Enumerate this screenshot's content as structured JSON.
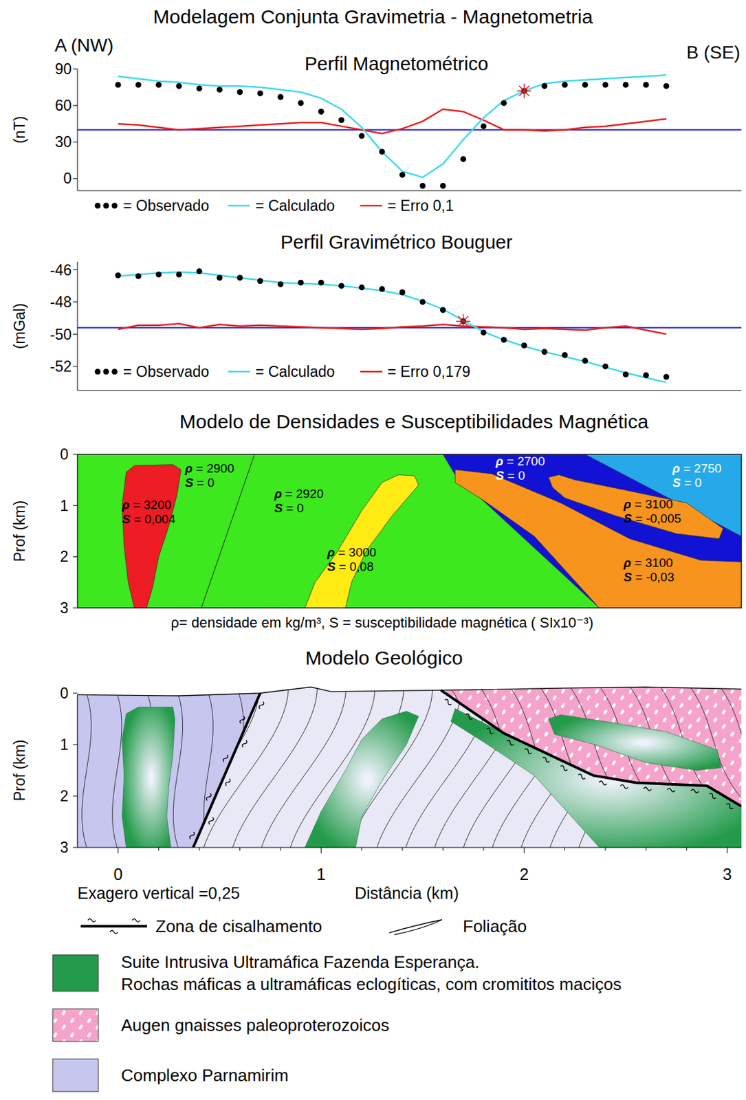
{
  "title": "Modelagem Conjunta Gravimetria - Magnetometria",
  "profile_ends": {
    "left": "A (NW)",
    "right": "B (SE)"
  },
  "chart_data": [
    {
      "type": "line",
      "title": "Perfil Magnetométrico",
      "y_label": "(nT)",
      "tick_labels": "y",
      "x": [
        0,
        0.1,
        0.2,
        0.3,
        0.4,
        0.5,
        0.6,
        0.7,
        0.8,
        0.9,
        1.0,
        1.1,
        1.2,
        1.3,
        1.4,
        1.5,
        1.6,
        1.7,
        1.8,
        1.9,
        2.0,
        2.1,
        2.2,
        2.3,
        2.4,
        2.5,
        2.6,
        2.7
      ],
      "xlim": [
        -0.2,
        3.07
      ],
      "ylim": [
        -10,
        90
      ],
      "yticks": [
        0,
        30,
        60,
        90
      ],
      "series": [
        {
          "name": "= Observado",
          "color": "#000000",
          "marker": "circle",
          "line_style": "none",
          "values": [
            77,
            77,
            77,
            76,
            74,
            73,
            71,
            70,
            67,
            62,
            55,
            48,
            35,
            22,
            3,
            -6,
            -6,
            16,
            43,
            62,
            72,
            76,
            77,
            77,
            77,
            77,
            77,
            76
          ]
        },
        {
          "name": "= Calculado",
          "color": "#3fd8f0",
          "marker": "none",
          "line_style": "solid",
          "values": [
            84,
            82,
            80,
            79,
            77,
            76,
            76,
            75,
            73,
            71,
            66,
            57,
            42,
            22,
            6,
            1,
            12,
            32,
            50,
            64,
            72,
            78,
            80,
            81,
            82,
            83,
            84,
            85
          ]
        },
        {
          "name": "= Erro 0,1",
          "color": "#e8201c",
          "marker": "none",
          "line_style": "solid",
          "values": [
            45,
            44,
            42,
            40,
            41,
            42,
            43,
            44,
            45,
            46,
            46,
            43,
            40,
            37,
            41,
            47,
            57,
            55,
            48,
            40,
            40,
            39,
            40,
            42,
            43,
            45,
            47,
            49
          ]
        }
      ],
      "reference_line": {
        "y": 40,
        "color": "#1c1cd4"
      },
      "highlight": {
        "x": 2.0,
        "y": 72,
        "color": "#d62020",
        "marker": "asterisk"
      }
    },
    {
      "type": "line",
      "title": "Perfil Gravimétrico Bouguer",
      "y_label": "(mGal)",
      "tick_labels": "y",
      "x": [
        0,
        0.1,
        0.2,
        0.3,
        0.4,
        0.5,
        0.6,
        0.7,
        0.8,
        0.9,
        1.0,
        1.1,
        1.2,
        1.3,
        1.4,
        1.5,
        1.6,
        1.7,
        1.8,
        1.9,
        2.0,
        2.1,
        2.2,
        2.3,
        2.4,
        2.5,
        2.6,
        2.7
      ],
      "xlim": [
        -0.2,
        3.07
      ],
      "ylim": [
        -53.5,
        -45.5
      ],
      "yticks": [
        -52,
        -50,
        -48,
        -46
      ],
      "series": [
        {
          "name": "= Observado",
          "color": "#000000",
          "marker": "circle",
          "line_style": "none",
          "values": [
            -46.35,
            -46.4,
            -46.3,
            -46.3,
            -46.1,
            -46.5,
            -46.5,
            -46.7,
            -46.9,
            -46.8,
            -46.8,
            -47.0,
            -47.1,
            -47.2,
            -47.4,
            -48.0,
            -48.5,
            -49.2,
            -49.9,
            -50.35,
            -50.7,
            -51.1,
            -51.3,
            -51.65,
            -52.0,
            -52.5,
            -52.55,
            -52.65
          ]
        },
        {
          "name": "= Calculado",
          "color": "#3fd8f0",
          "marker": "none",
          "line_style": "solid",
          "values": [
            -46.4,
            -46.3,
            -46.2,
            -46.15,
            -46.2,
            -46.35,
            -46.5,
            -46.65,
            -46.8,
            -46.85,
            -46.9,
            -47.0,
            -47.15,
            -47.3,
            -47.55,
            -47.95,
            -48.45,
            -49.15,
            -49.85,
            -50.35,
            -50.75,
            -51.1,
            -51.4,
            -51.7,
            -52.05,
            -52.4,
            -52.7,
            -53.0
          ]
        },
        {
          "name": "= Erro 0,179",
          "color": "#e8201c",
          "marker": "none",
          "line_style": "solid",
          "values": [
            -49.7,
            -49.45,
            -49.45,
            -49.35,
            -49.6,
            -49.4,
            -49.5,
            -49.45,
            -49.5,
            -49.55,
            -49.6,
            -49.65,
            -49.7,
            -49.65,
            -49.55,
            -49.5,
            -49.4,
            -49.5,
            -49.55,
            -49.6,
            -49.7,
            -49.65,
            -49.7,
            -49.75,
            -49.6,
            -49.5,
            -49.75,
            -50.0
          ]
        }
      ],
      "reference_line": {
        "y": -49.6,
        "color": "#1c1cd4"
      },
      "highlight": {
        "x": 1.7,
        "y": -49.2,
        "color": "#d62020",
        "marker": "asterisk"
      }
    }
  ],
  "density_model": {
    "title": "Modelo de Densidades e Susceptibilidades Magnética",
    "caption": "ρ= densidade em kg/m³, S = susceptibilidade magnética ( SIx10⁻³)",
    "y_label": "Prof (km)",
    "xlim": [
      -0.2,
      3.07
    ],
    "ylim": [
      0,
      3
    ],
    "yticks": [
      0,
      1,
      2,
      3
    ],
    "tick_labels": "y",
    "bodies": [
      {
        "color": "#3de81e",
        "polygon": [
          [
            -0.2,
            0
          ],
          [
            3.07,
            0
          ],
          [
            3.07,
            3
          ],
          [
            -0.2,
            3
          ]
        ]
      },
      {
        "color": "#ee1c24",
        "polygon": [
          [
            0.04,
            0.35
          ],
          [
            0.08,
            0.22
          ],
          [
            0.27,
            0.2
          ],
          [
            0.31,
            0.3
          ],
          [
            0.29,
            0.8
          ],
          [
            0.25,
            1.4
          ],
          [
            0.2,
            2.0
          ],
          [
            0.17,
            2.6
          ],
          [
            0.14,
            3.0
          ],
          [
            0.08,
            3.0
          ],
          [
            0.05,
            2.5
          ],
          [
            0.03,
            1.8
          ],
          [
            0.02,
            1.0
          ]
        ]
      },
      {
        "color": "#ffeb14",
        "polygon": [
          [
            1.3,
            0.55
          ],
          [
            1.38,
            0.4
          ],
          [
            1.46,
            0.42
          ],
          [
            1.48,
            0.6
          ],
          [
            1.35,
            1.2
          ],
          [
            1.22,
            1.9
          ],
          [
            1.15,
            2.5
          ],
          [
            1.12,
            3.0
          ],
          [
            0.92,
            3.0
          ],
          [
            0.97,
            2.5
          ],
          [
            1.08,
            1.9
          ],
          [
            1.2,
            1.1
          ]
        ]
      },
      {
        "color": "#1212d4",
        "polygon": [
          [
            1.6,
            0
          ],
          [
            3.07,
            0
          ],
          [
            3.07,
            3
          ],
          [
            2.37,
            3
          ],
          [
            1.66,
            0.4
          ]
        ]
      },
      {
        "color": "#26a9e8",
        "polygon": [
          [
            2.3,
            0
          ],
          [
            3.07,
            0
          ],
          [
            3.07,
            1.6
          ]
        ]
      },
      {
        "color": "#f7941d",
        "polygon": [
          [
            1.66,
            0.3
          ],
          [
            1.84,
            0.38
          ],
          [
            2.18,
            0.95
          ],
          [
            2.52,
            1.65
          ],
          [
            2.87,
            2.07
          ],
          [
            3.07,
            2.1
          ],
          [
            3.07,
            3.0
          ],
          [
            2.37,
            3.0
          ],
          [
            2.05,
            1.6
          ],
          [
            1.8,
            0.9
          ],
          [
            1.66,
            0.55
          ]
        ]
      },
      {
        "color": "#f7941d",
        "polygon": [
          [
            2.12,
            0.45
          ],
          [
            2.17,
            0.4
          ],
          [
            2.25,
            0.5
          ],
          [
            2.5,
            0.7
          ],
          [
            2.8,
            0.95
          ],
          [
            2.98,
            1.45
          ],
          [
            2.96,
            1.65
          ],
          [
            2.75,
            1.55
          ],
          [
            2.45,
            1.2
          ],
          [
            2.2,
            0.85
          ],
          [
            2.14,
            0.65
          ]
        ]
      }
    ],
    "boundaries": [
      [
        [
          0.672,
          0
        ],
        [
          0.41,
          3
        ]
      ]
    ],
    "labels": [
      {
        "lines": [
          "ρ = 2900",
          "S = 0"
        ],
        "at": [
          0.33,
          0.36
        ],
        "color": "#000000"
      },
      {
        "lines": [
          "ρ = 3200",
          "S = 0,004"
        ],
        "at": [
          0.02,
          1.07
        ],
        "color": "#000000"
      },
      {
        "lines": [
          "ρ = 2920",
          "S = 0"
        ],
        "at": [
          0.77,
          0.85
        ],
        "color": "#000000"
      },
      {
        "lines": [
          "ρ = 3000",
          "S = 0,08"
        ],
        "at": [
          1.03,
          1.99
        ],
        "color": "#000000"
      },
      {
        "lines": [
          "ρ = 2700",
          "S = 0"
        ],
        "at": [
          1.86,
          0.22
        ],
        "color": "#ffffff"
      },
      {
        "lines": [
          "ρ = 2750",
          "S = 0"
        ],
        "at": [
          2.73,
          0.36
        ],
        "color": "#ffffff"
      },
      {
        "lines": [
          "ρ = 3100",
          "S = -0,005"
        ],
        "at": [
          2.49,
          1.05
        ],
        "color": "#000000"
      },
      {
        "lines": [
          "ρ = 3100",
          "S = -0,03"
        ],
        "at": [
          2.49,
          2.2
        ],
        "color": "#000000"
      }
    ]
  },
  "geological_model": {
    "title": "Modelo Geológico",
    "y_label": "Prof (km)",
    "x_label": "Distância (km)",
    "note": "Exagero vertical =0,25",
    "xlim": [
      -0.2,
      3.07
    ],
    "ylim": [
      0,
      3
    ],
    "xticks": [
      0,
      1,
      2,
      3
    ],
    "minor_xticks": [
      0.2,
      0.4,
      0.6,
      0.8,
      1.2,
      1.4,
      1.6,
      1.8,
      2.2,
      2.4,
      2.6,
      2.8
    ],
    "yticks": [
      0,
      1,
      2,
      3
    ],
    "regions": [
      {
        "color": "#c6c6ee",
        "polygon": [
          [
            -0.2,
            0.03
          ],
          [
            0.3,
            0.05
          ],
          [
            0.7,
            0.0
          ],
          [
            0.37,
            3.0
          ],
          [
            -0.2,
            3.0
          ]
        ]
      },
      {
        "color": "#e8e8f6",
        "polygon": [
          [
            0.7,
            0.0
          ],
          [
            0.95,
            -0.12
          ],
          [
            1.05,
            -0.03
          ],
          [
            1.59,
            -0.06
          ],
          [
            3.07,
            -0.08
          ],
          [
            3.07,
            3.0
          ],
          [
            0.37,
            3.0
          ]
        ]
      },
      {
        "color": "#f6a3cb",
        "marker": "dots",
        "polygon": [
          [
            1.59,
            -0.06
          ],
          [
            1.8,
            -0.07
          ],
          [
            2.2,
            -0.1
          ],
          [
            2.6,
            -0.12
          ],
          [
            3.07,
            -0.08
          ],
          [
            3.07,
            2.2
          ],
          [
            2.9,
            1.8
          ],
          [
            2.55,
            1.74
          ],
          [
            2.34,
            1.6
          ],
          [
            1.9,
            0.78
          ]
        ]
      },
      {
        "color": "#239b4b",
        "marker": "gradient",
        "polygon": [
          [
            0.04,
            0.4
          ],
          [
            0.1,
            0.27
          ],
          [
            0.27,
            0.27
          ],
          [
            0.28,
            0.5
          ],
          [
            0.27,
            1.2
          ],
          [
            0.25,
            1.8
          ],
          [
            0.24,
            2.4
          ],
          [
            0.26,
            3.0
          ],
          [
            0.04,
            3.0
          ],
          [
            0.02,
            2.4
          ],
          [
            0.03,
            1.6
          ],
          [
            0.02,
            0.9
          ]
        ]
      },
      {
        "color": "#239b4b",
        "marker": "gradient",
        "polygon": [
          [
            1.3,
            0.5
          ],
          [
            1.42,
            0.35
          ],
          [
            1.48,
            0.45
          ],
          [
            1.42,
            1.0
          ],
          [
            1.3,
            1.7
          ],
          [
            1.2,
            2.4
          ],
          [
            1.17,
            3.0
          ],
          [
            0.92,
            3.0
          ],
          [
            1.0,
            2.3
          ],
          [
            1.12,
            1.5
          ],
          [
            1.2,
            0.9
          ]
        ]
      },
      {
        "color": "#239b4b",
        "marker": "gradient",
        "polygon": [
          [
            1.66,
            0.3
          ],
          [
            1.9,
            0.78
          ],
          [
            2.34,
            1.6
          ],
          [
            2.55,
            1.74
          ],
          [
            2.9,
            1.8
          ],
          [
            3.07,
            2.2
          ],
          [
            3.07,
            3.0
          ],
          [
            2.37,
            3.0
          ],
          [
            2.05,
            1.6
          ],
          [
            1.8,
            0.95
          ],
          [
            1.64,
            0.55
          ]
        ]
      },
      {
        "color": "#239b4b",
        "marker": "gradient",
        "polygon": [
          [
            2.12,
            0.5
          ],
          [
            2.18,
            0.42
          ],
          [
            2.4,
            0.55
          ],
          [
            2.7,
            0.75
          ],
          [
            2.95,
            1.1
          ],
          [
            2.97,
            1.45
          ],
          [
            2.85,
            1.5
          ],
          [
            2.6,
            1.35
          ],
          [
            2.35,
            1.0
          ],
          [
            2.15,
            0.8
          ]
        ]
      }
    ],
    "topography": [
      [
        -0.2,
        0.03
      ],
      [
        0.3,
        0.05
      ],
      [
        0.7,
        0.0
      ],
      [
        0.95,
        -0.12
      ],
      [
        1.05,
        -0.03
      ],
      [
        1.59,
        -0.06
      ],
      [
        1.8,
        -0.07
      ],
      [
        2.2,
        -0.1
      ],
      [
        2.6,
        -0.12
      ],
      [
        3.07,
        -0.08
      ]
    ],
    "shear_zones": [
      [
        [
          0.7,
          0.0
        ],
        [
          0.37,
          3.0
        ]
      ],
      [
        [
          1.59,
          -0.06
        ],
        [
          1.9,
          0.78
        ],
        [
          2.34,
          1.6
        ],
        [
          2.55,
          1.74
        ],
        [
          2.9,
          1.8
        ],
        [
          3.07,
          2.2
        ]
      ]
    ]
  },
  "legend": [
    {
      "marker": "shear_zone",
      "lines": [
        "Zona de cisalhamento"
      ]
    },
    {
      "marker": "foliation",
      "lines": [
        "Foliação"
      ]
    },
    {
      "marker": "fill",
      "color": "#239b4b",
      "lines": [
        "Suite Intrusiva Ultramáfica Fazenda Esperança.",
        "Rochas máficas a ultramáficas eclogíticas, com cromititos maciços"
      ]
    },
    {
      "marker": "dots",
      "color": "#f6a3cb",
      "lines": [
        "Augen gnaisses paleoproterozoicos"
      ]
    },
    {
      "marker": "fill",
      "color": "#c6c6ee",
      "lines": [
        "Complexo Parnamirim"
      ]
    }
  ]
}
